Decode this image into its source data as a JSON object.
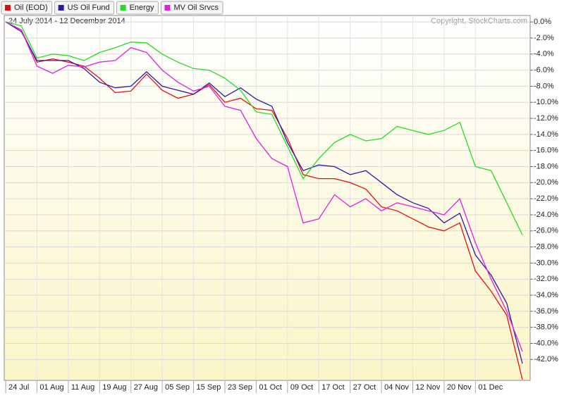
{
  "chart_data": {
    "type": "line",
    "subtitle": "24 July 2014 - 12 December 2014",
    "annotation": "Copyright, StockCharts.com",
    "categories": [
      "24 Jul",
      null,
      "01 Aug",
      null,
      "11 Aug",
      null,
      "19 Aug",
      null,
      "27 Aug",
      null,
      "05 Sep",
      null,
      "15 Sep",
      null,
      "23 Sep",
      null,
      "01 Oct",
      null,
      "09 Oct",
      null,
      "17 Oct",
      null,
      "27 Oct",
      null,
      "04 Nov",
      null,
      "12 Nov",
      null,
      "20 Nov",
      null,
      "01 Dec",
      null,
      null,
      null
    ],
    "series": [
      {
        "name": "Oil (EOD)",
        "color": "#e01010",
        "values": [
          0,
          -1.0,
          -5.0,
          -4.6,
          -5.0,
          -5.5,
          -7.0,
          -8.8,
          -8.6,
          -6.5,
          -8.5,
          -9.5,
          -9.0,
          -7.8,
          -10.0,
          -9.5,
          -10.8,
          -11.0,
          -14.5,
          -19.0,
          -19.5,
          -19.5,
          -20.0,
          -20.8,
          -23.0,
          -23.5,
          -24.5,
          -25.5,
          -26.0,
          -25.0,
          -31.0,
          -33.5,
          -36.5,
          -44.5
        ]
      },
      {
        "name": "US Oil Fund",
        "color": "#2a1aa8",
        "values": [
          0,
          -1.2,
          -4.8,
          -4.8,
          -4.8,
          -5.8,
          -7.5,
          -8.2,
          -8.0,
          -6.2,
          -8.0,
          -8.5,
          -9.0,
          -7.6,
          -9.3,
          -8.2,
          -9.6,
          -10.5,
          -15.0,
          -18.5,
          -17.8,
          -18.0,
          -19.0,
          -18.5,
          -20.0,
          -21.5,
          -22.5,
          -23.2,
          -25.0,
          -23.8,
          -29.0,
          -31.5,
          -35.0,
          -42.5
        ]
      },
      {
        "name": "Energy",
        "color": "#22dd22",
        "values": [
          0,
          -0.5,
          -4.5,
          -4.0,
          -4.2,
          -4.8,
          -3.8,
          -3.2,
          -2.5,
          -2.6,
          -4.0,
          -5.0,
          -5.8,
          -6.0,
          -7.0,
          -8.5,
          -11.2,
          -11.5,
          -15.5,
          -19.5,
          -17.0,
          -15.0,
          -14.0,
          -14.8,
          -14.5,
          -13.0,
          -13.5,
          -14.0,
          -13.5,
          -12.5,
          -18.0,
          -18.5,
          -22.5,
          -26.5
        ]
      },
      {
        "name": "MV Oil Srvcs",
        "color": "#e020e0",
        "values": [
          0,
          -1.0,
          -5.5,
          -6.4,
          -5.4,
          -5.6,
          -5.0,
          -4.8,
          -3.2,
          -3.8,
          -6.0,
          -7.5,
          -8.6,
          -8.0,
          -10.5,
          -11.0,
          -14.5,
          -17.0,
          -18.0,
          -25.0,
          -24.5,
          -21.5,
          -23.0,
          -22.0,
          -23.5,
          -22.5,
          -23.0,
          -23.5,
          -24.0,
          -22.0,
          -27.5,
          -32.0,
          -36.0,
          -41.0
        ]
      }
    ],
    "ylim": [
      -44.6,
      0.8
    ],
    "yticks": [
      {
        "value": 0,
        "label": "0.0%"
      },
      {
        "value": -2,
        "label": "-2.0%"
      },
      {
        "value": -4,
        "label": "-4.0%"
      },
      {
        "value": -6,
        "label": "-6.0%"
      },
      {
        "value": -8,
        "label": "-8.0%"
      },
      {
        "value": -10,
        "label": "-10.0%"
      },
      {
        "value": -12,
        "label": "-12.0%"
      },
      {
        "value": -14,
        "label": "-14.0%"
      },
      {
        "value": -16,
        "label": "-16.0%"
      },
      {
        "value": -18,
        "label": "-18.0%"
      },
      {
        "value": -20,
        "label": "-20.0%"
      },
      {
        "value": -22,
        "label": "-22.0%"
      },
      {
        "value": -24,
        "label": "-24.0%"
      },
      {
        "value": -26,
        "label": "-26.0%"
      },
      {
        "value": -28,
        "label": "-28.0%"
      },
      {
        "value": -30,
        "label": "-30.0%"
      },
      {
        "value": -32,
        "label": "-32.0%"
      },
      {
        "value": -34,
        "label": "-34.0%"
      },
      {
        "value": -36,
        "label": "-36.0%"
      },
      {
        "value": -38,
        "label": "-38.0%"
      },
      {
        "value": -40,
        "label": "-40.0%"
      },
      {
        "value": -42,
        "label": "-42.0%"
      }
    ],
    "grid": true
  }
}
